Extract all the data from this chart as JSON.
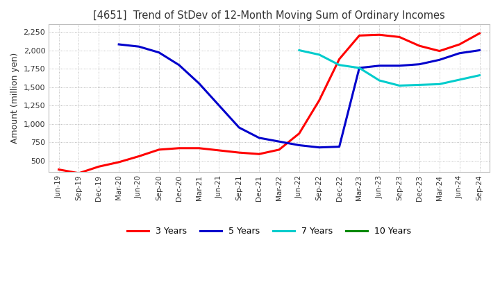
{
  "title": "[4651]  Trend of StDev of 12-Month Moving Sum of Ordinary Incomes",
  "ylabel": "Amount (million yen)",
  "line_colors": {
    "3y": "#ff0000",
    "5y": "#0000cc",
    "7y": "#00cccc",
    "10y": "#008800"
  },
  "legend_labels": [
    "3 Years",
    "5 Years",
    "7 Years",
    "10 Years"
  ],
  "ylim": [
    350,
    2350
  ],
  "yticks": [
    500,
    750,
    1000,
    1250,
    1500,
    1750,
    2000,
    2250
  ],
  "background_color": "#ffffff",
  "plot_bg_color": "#ffffff",
  "grid_color": "#aaaaaa",
  "x_labels": [
    "Jun-19",
    "Sep-19",
    "Dec-19",
    "Mar-20",
    "Jun-20",
    "Sep-20",
    "Dec-20",
    "Mar-21",
    "Jun-21",
    "Sep-21",
    "Dec-21",
    "Mar-22",
    "Jun-22",
    "Sep-22",
    "Dec-22",
    "Mar-23",
    "Jun-23",
    "Sep-23",
    "Dec-23",
    "Mar-24",
    "Jun-24",
    "Sep-24"
  ],
  "series_3y": [
    380,
    330,
    420,
    480,
    560,
    650,
    670,
    670,
    640,
    610,
    590,
    650,
    870,
    1320,
    1880,
    2200,
    2210,
    2180,
    2060,
    1990,
    2080,
    2230
  ],
  "series_5y": [
    null,
    null,
    null,
    2080,
    2050,
    1970,
    1800,
    1550,
    1250,
    950,
    810,
    760,
    710,
    680,
    690,
    1760,
    1790,
    1790,
    1810,
    1870,
    1960,
    2000
  ],
  "series_7y": [
    null,
    null,
    null,
    null,
    null,
    null,
    null,
    null,
    null,
    null,
    null,
    null,
    2000,
    1940,
    1800,
    1760,
    1590,
    1520,
    1530,
    1540,
    1600,
    1660
  ],
  "series_10y": []
}
